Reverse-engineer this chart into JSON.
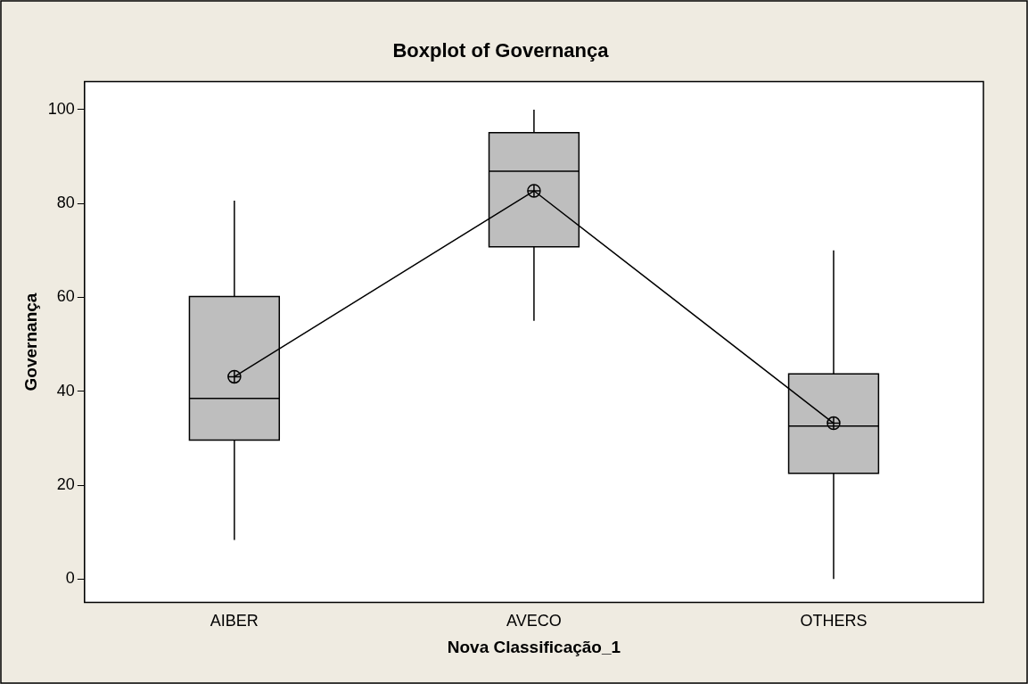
{
  "chart_data": {
    "type": "box",
    "title": "Boxplot of Governança",
    "xlabel": "Nova Classificação_1",
    "ylabel": "Governança",
    "categories": [
      "AIBER",
      "AVECO",
      "OTHERS"
    ],
    "ylim": [
      -5,
      106
    ],
    "yticks": [
      0,
      20,
      40,
      60,
      80,
      100
    ],
    "grid": false,
    "legend": false,
    "marker": "circle",
    "series": [
      {
        "color": "#bebebe",
        "boxes": [
          {
            "low": 8.3,
            "q1": 29.6,
            "median": 38.5,
            "q3": 60.2,
            "high": 80.6
          },
          {
            "low": 55,
            "q1": 70.8,
            "median": 86.9,
            "q3": 95.1,
            "high": 100
          },
          {
            "low": 0,
            "q1": 22.5,
            "median": 32.6,
            "q3": 43.7,
            "high": 70
          }
        ]
      },
      {
        "type": "line",
        "color": "#000000",
        "values": [
          43.1,
          82.7,
          33.2
        ]
      }
    ]
  }
}
